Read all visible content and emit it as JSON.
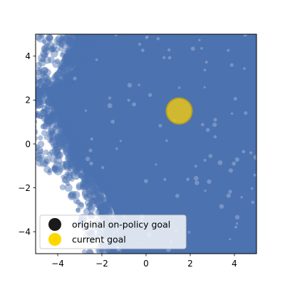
{
  "chart_data": {
    "type": "scatter",
    "xlim": [
      -5,
      5
    ],
    "ylim": [
      -5,
      5
    ],
    "x_ticks": [
      -4,
      -2,
      0,
      2,
      4
    ],
    "y_ticks": [
      -4,
      -2,
      0,
      2,
      4
    ],
    "grid": false,
    "legend_position": "lower-left",
    "colors": {
      "cloud": "#4c72b0",
      "original_goal": "#1a1a1a",
      "current_goal": "#e8c41a",
      "current_goal_edge": "#b8a020"
    },
    "legend": [
      {
        "label": "original on-policy goal",
        "color": "#1a1a1a"
      },
      {
        "label": "current goal",
        "color": "#ffd700"
      }
    ],
    "current_goal": {
      "x": 1.5,
      "y": 1.5
    },
    "cloud_bounds": [
      {
        "y": 5.0,
        "x_min": -3.6
      },
      {
        "y": 4.5,
        "x_min": -3.2
      },
      {
        "y": 4.0,
        "x_min": -3.3
      },
      {
        "y": 3.5,
        "x_min": -3.5
      },
      {
        "y": 3.0,
        "x_min": -3.8
      },
      {
        "y": 2.5,
        "x_min": -4.9
      },
      {
        "y": 2.0,
        "x_min": -4.7
      },
      {
        "y": 1.5,
        "x_min": -4.4
      },
      {
        "y": 1.0,
        "x_min": -4.2
      },
      {
        "y": 0.5,
        "x_min": -4.0
      },
      {
        "y": 0.0,
        "x_min": -3.8
      },
      {
        "y": -0.5,
        "x_min": -3.8
      },
      {
        "y": -1.0,
        "x_min": -3.3
      },
      {
        "y": -1.5,
        "x_min": -2.8
      },
      {
        "y": -2.0,
        "x_min": -2.4
      },
      {
        "y": -2.5,
        "x_min": -2.0
      },
      {
        "y": -3.0,
        "x_min": -1.8
      },
      {
        "y": -3.5,
        "x_min": -1.6
      },
      {
        "y": -4.0,
        "x_min": -1.5
      },
      {
        "y": -4.5,
        "x_min": -1.4
      },
      {
        "y": -5.0,
        "x_min": -1.4
      }
    ]
  }
}
